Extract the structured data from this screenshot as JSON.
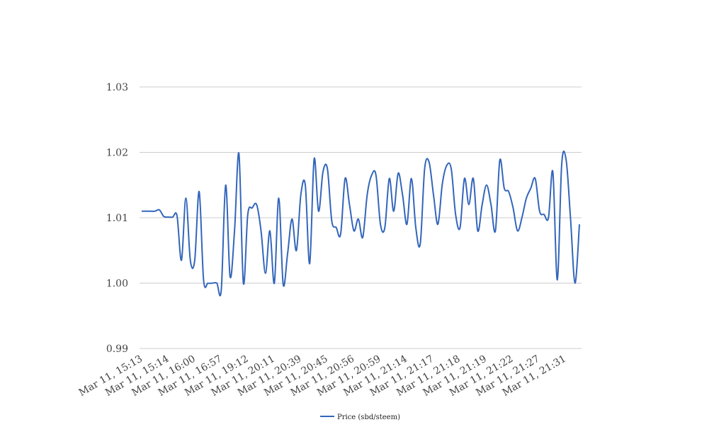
{
  "chart_data": {
    "type": "line",
    "title": "",
    "xlabel": "",
    "ylabel": "",
    "ylim": [
      0.99,
      1.03
    ],
    "yticks": [
      "0.99",
      "1.00",
      "1.01",
      "1.02",
      "1.03"
    ],
    "grid": true,
    "legend_position": "bottom",
    "x_tick_labels": [
      "Mar 11, 15:13",
      "Mar 11, 15:14",
      "Mar 11, 16:00",
      "Mar 11, 16:57",
      "Mar 11, 19:12",
      "Mar 11, 20:11",
      "Mar 11, 20:39",
      "Mar 11, 20:45",
      "Mar 11, 20:56",
      "Mar 11, 20:59",
      "Mar 11, 21:14",
      "Mar 11, 21:17",
      "Mar 11, 21:18",
      "Mar 11, 21:19",
      "Mar 11, 21:22",
      "Mar 11, 21:27",
      "Mar 11, 21:31"
    ],
    "series": [
      {
        "name": "Price (sbd/steem)",
        "color": "#3366bb",
        "values": [
          1.011,
          1.011,
          1.011,
          1.011,
          1.0112,
          1.0102,
          1.0101,
          1.0101,
          1.0103,
          1.0035,
          1.013,
          1.0035,
          1.0035,
          1.014,
          1.0005,
          1.0,
          1.0,
          1.0,
          0.999,
          1.015,
          1.001,
          1.008,
          1.0198,
          1.0,
          1.0105,
          1.0115,
          1.012,
          1.008,
          1.0015,
          1.008,
          1.0,
          1.013,
          0.9998,
          1.0045,
          1.0098,
          1.005,
          1.0135,
          1.015,
          1.003,
          1.019,
          1.011,
          1.017,
          1.0175,
          1.0095,
          1.0085,
          1.0075,
          1.016,
          1.012,
          1.008,
          1.0098,
          1.007,
          1.0135,
          1.0165,
          1.0165,
          1.009,
          1.0085,
          1.016,
          1.011,
          1.0168,
          1.0135,
          1.009,
          1.016,
          1.0085,
          1.006,
          1.0175,
          1.0185,
          1.0135,
          1.009,
          1.0152,
          1.018,
          1.0175,
          1.0105,
          1.0085,
          1.016,
          1.012,
          1.016,
          1.008,
          1.012,
          1.015,
          1.012,
          1.008,
          1.0188,
          1.0145,
          1.014,
          1.0115,
          1.008,
          1.01,
          1.013,
          1.0145,
          1.016,
          1.011,
          1.0105,
          1.01,
          1.017,
          1.0005,
          1.0182,
          1.0188,
          1.0098,
          1.0,
          1.009
        ]
      }
    ]
  }
}
